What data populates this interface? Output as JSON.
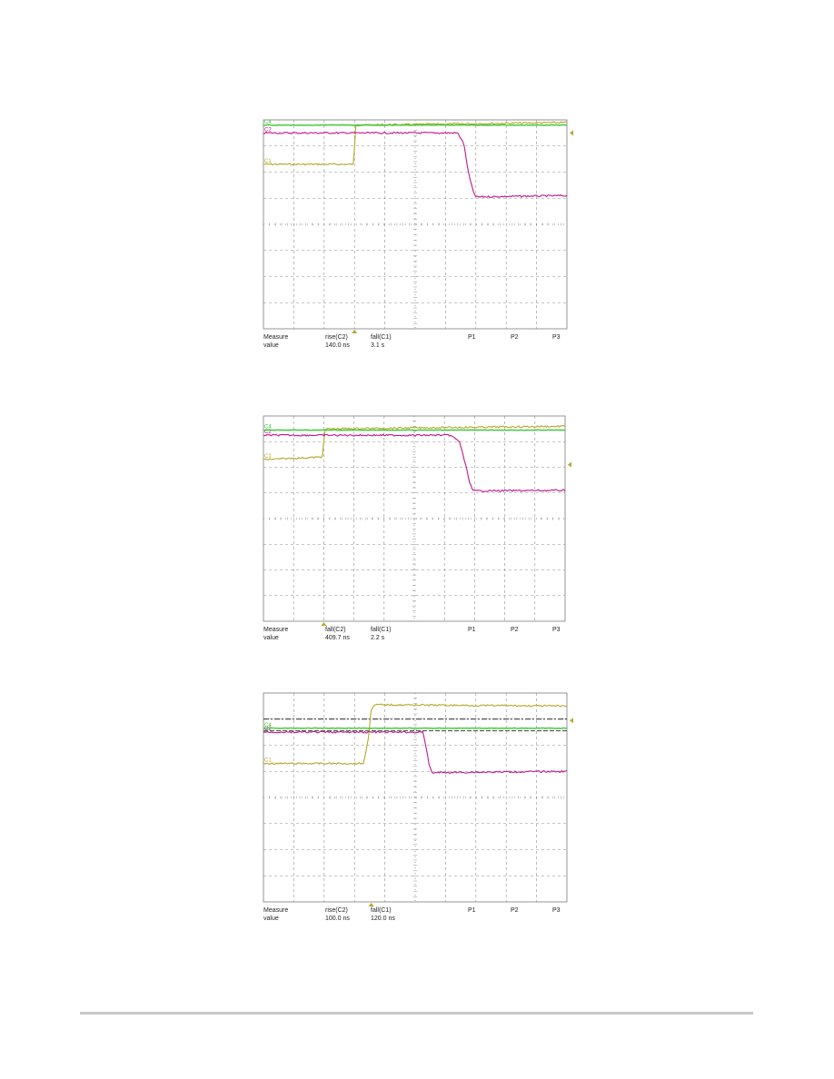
{
  "colors": {
    "ch1": "#b5a82a",
    "ch2": "#c0188a",
    "ch4": "#3cc832",
    "grid": "#8c8c8c",
    "frame": "#7a7a7a"
  },
  "measure": {
    "col_header": "Measure",
    "row_header": "value",
    "p1": "P1",
    "p2": "P2",
    "p3": "P3"
  },
  "scopes": [
    {
      "markers": {
        "ch1": "C1",
        "ch2": "C2",
        "ch4": "C4"
      },
      "params": [
        {
          "name": "rise(C2)",
          "value": "140.0 ns"
        },
        {
          "name": "fall(C1)",
          "value": "3.1 s"
        }
      ]
    },
    {
      "markers": {
        "ch1": "C1",
        "ch2": "C2",
        "ch4": "C4"
      },
      "params": [
        {
          "name": "fall(C2)",
          "value": "409.7 ns"
        },
        {
          "name": "fall(C1)",
          "value": "2.2 s"
        }
      ]
    },
    {
      "markers": {
        "ch1": "C1",
        "ch2": "C2",
        "ch4": "C4"
      },
      "params": [
        {
          "name": "rise(C2)",
          "value": "100.0 ns"
        },
        {
          "name": "fall(C1)",
          "value": "120.0 ns"
        }
      ]
    }
  ],
  "chart_data": [
    {
      "type": "line",
      "x_divisions": 10,
      "y_divisions": 8,
      "series": [
        {
          "values": [
            [
              0,
              6.3
            ],
            [
              2.97,
              6.3
            ],
            [
              3.0,
              6.9
            ],
            [
              3.03,
              7.8
            ],
            [
              10,
              7.9
            ]
          ]
        },
        {
          "values": [
            [
              0,
              7.5
            ],
            [
              6.4,
              7.5
            ],
            [
              6.6,
              7.1
            ],
            [
              6.75,
              6.0
            ],
            [
              6.9,
              5.3
            ],
            [
              7.0,
              5.05
            ],
            [
              10,
              5.1
            ]
          ]
        },
        {
          "values": [
            [
              0,
              7.8
            ],
            [
              10,
              7.8
            ]
          ]
        }
      ]
    },
    {
      "type": "line",
      "x_divisions": 10,
      "y_divisions": 8,
      "series": [
        {
          "values": [
            [
              0,
              6.3
            ],
            [
              1.95,
              6.4
            ],
            [
              2.0,
              7.0
            ],
            [
              2.05,
              7.5
            ],
            [
              10,
              7.6
            ]
          ]
        },
        {
          "values": [
            [
              0,
              7.25
            ],
            [
              6.2,
              7.25
            ],
            [
              6.5,
              7.0
            ],
            [
              6.7,
              6.1
            ],
            [
              6.85,
              5.35
            ],
            [
              6.95,
              5.08
            ],
            [
              10,
              5.1
            ]
          ]
        },
        {
          "values": [
            [
              0,
              7.45
            ],
            [
              10,
              7.45
            ]
          ]
        }
      ]
    },
    {
      "type": "line",
      "x_divisions": 10,
      "y_divisions": 8,
      "series": [
        {
          "values": [
            [
              0,
              5.3
            ],
            [
              3.3,
              5.3
            ],
            [
              3.45,
              6.2
            ],
            [
              3.55,
              7.4
            ],
            [
              3.7,
              7.55
            ],
            [
              10,
              7.5
            ]
          ]
        },
        {
          "values": [
            [
              0,
              6.5
            ],
            [
              5.25,
              6.5
            ],
            [
              5.35,
              6.0
            ],
            [
              5.45,
              5.3
            ],
            [
              5.55,
              4.95
            ],
            [
              10,
              5.0
            ]
          ]
        },
        {
          "values": [
            [
              0,
              6.65
            ],
            [
              10,
              6.65
            ]
          ]
        }
      ]
    }
  ]
}
